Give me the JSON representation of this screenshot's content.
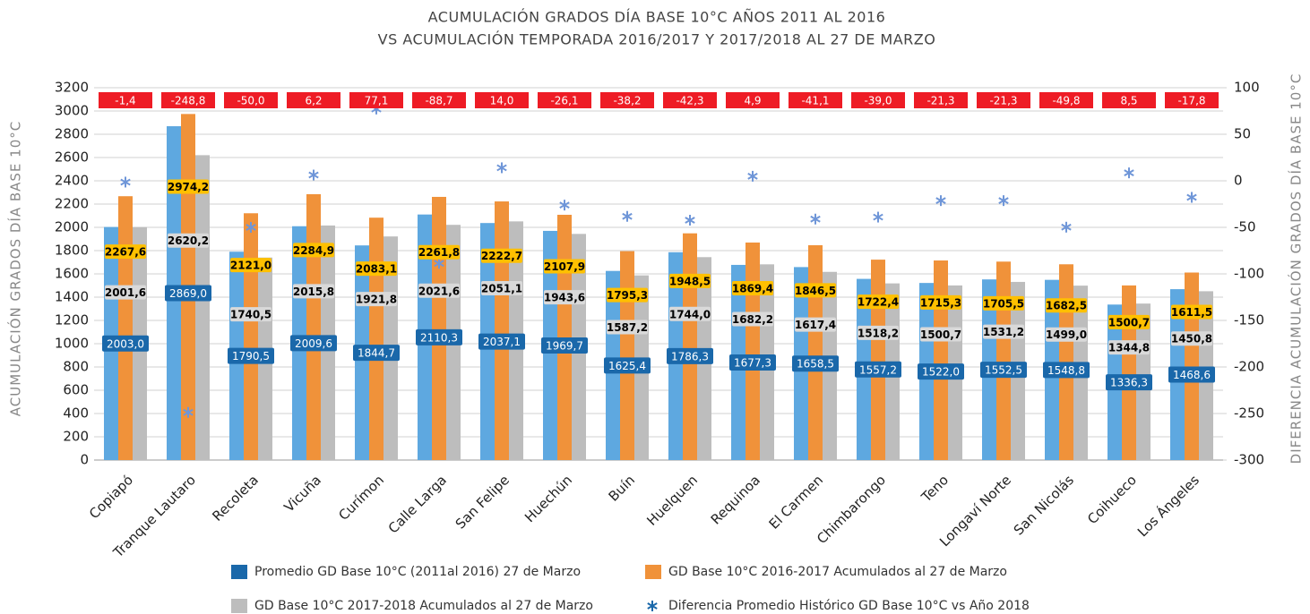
{
  "chart_data": {
    "type": "bar",
    "title": "ACUMULACIÓN GRADOS DÍA BASE 10°C AÑOS 2011 AL 2016",
    "subtitle": "VS ACUMULACIÓN TEMPORADA 2016/2017 Y 2017/2018 AL 27 DE MARZO",
    "ylabel": "ACUMULACIÓN GRADOS DÍA BASE 10°C",
    "y2label": "DIFERENCIA ACUMULACIÓN GRADOS DÍA BASE 10°C",
    "categories": [
      "Copiapó",
      "Tranque Lautaro",
      "Recoleta",
      "Vicuña",
      "Curímon",
      "Calle Larga",
      "San Felipe",
      "Huechún",
      "Buín",
      "Huelquen",
      "Requinoa",
      "El Carmen",
      "Chimbarongo",
      "Teno",
      "Longaví Norte",
      "San Nicolás",
      "Coihueco",
      "Los Ángeles"
    ],
    "series": [
      {
        "name": "Promedio GD Base 10°C (2011al 2016) 27 de Marzo",
        "color": "#5ea8e0",
        "values": [
          2003.0,
          2869.0,
          1790.5,
          2009.6,
          1844.7,
          2110.3,
          2037.1,
          1969.7,
          1625.4,
          1786.3,
          1677.3,
          1658.5,
          1557.2,
          1522.0,
          1552.5,
          1548.8,
          1336.3,
          1468.6
        ],
        "value_labels": [
          "2003,0",
          "2869,0",
          "1790,5",
          "2009,6",
          "1844,7",
          "2110,3",
          "2037,1",
          "1969,7",
          "1625,4",
          "1786,3",
          "1677,3",
          "1658,5",
          "1557,2",
          "1522,0",
          "1552,5",
          "1548,8",
          "1336,3",
          "1468,6"
        ]
      },
      {
        "name": "GD Base 10°C 2016-2017 Acumulados al 27 de Marzo",
        "color": "#f0923a",
        "values": [
          2267.6,
          2974.2,
          2121.0,
          2284.9,
          2083.1,
          2261.8,
          2222.7,
          2107.9,
          1795.3,
          1948.5,
          1869.4,
          1846.5,
          1722.4,
          1715.3,
          1705.5,
          1682.5,
          1500.7,
          1611.5
        ],
        "value_labels": [
          "2267,6",
          "2974,2",
          "2121,0",
          "2284,9",
          "2083,1",
          "2261,8",
          "2222,7",
          "2107,9",
          "1795,3",
          "1948,5",
          "1869,4",
          "1846,5",
          "1722,4",
          "1715,3",
          "1705,5",
          "1682,5",
          "1500,7",
          "1611,5"
        ]
      },
      {
        "name": "GD Base 10°C 2017-2018 Acumulados al 27 de Marzo",
        "color": "#bdbdbd",
        "values": [
          2001.6,
          2620.2,
          1740.5,
          2015.8,
          1921.8,
          2021.6,
          2051.1,
          1943.6,
          1587.2,
          1744.0,
          1682.2,
          1617.4,
          1518.2,
          1500.7,
          1531.2,
          1499.0,
          1344.8,
          1450.8
        ],
        "value_labels": [
          "2001,6",
          "2620,2",
          "1740,5",
          "2015,8",
          "1921,8",
          "2021,6",
          "2051,1",
          "1943,6",
          "1587,2",
          "1744,0",
          "1682,2",
          "1617,4",
          "1518,2",
          "1500,7",
          "1531,2",
          "1499,0",
          "1344,8",
          "1450,8"
        ]
      },
      {
        "name": "Diferencia Promedio Histórico GD Base 10°C vs Año 2018",
        "color": "#6f96d8",
        "axis": "y2",
        "marker": "asterisk",
        "values": [
          -1.4,
          -248.8,
          -50.0,
          6.2,
          77.1,
          -88.7,
          14.0,
          -26.1,
          -38.2,
          -42.3,
          4.9,
          -41.1,
          -39.0,
          -21.3,
          -21.3,
          -49.8,
          8.5,
          -17.8
        ],
        "value_labels": [
          "-1,4",
          "-248,8",
          "-50,0",
          "6,2",
          "77,1",
          "-88,7",
          "14,0",
          "-26,1",
          "-38,2",
          "-42,3",
          "4,9",
          "-41,1",
          "-39,0",
          "-21,3",
          "-21,3",
          "-49,8",
          "8,5",
          "-17,8"
        ]
      }
    ],
    "ylim": [
      0,
      3200
    ],
    "yticks": [
      0,
      200,
      400,
      600,
      800,
      1000,
      1200,
      1400,
      1600,
      1800,
      2000,
      2200,
      2400,
      2600,
      2800,
      3000,
      3200
    ],
    "y2lim": [
      -300,
      100
    ],
    "y2ticks": [
      -300,
      -250,
      -200,
      -150,
      -100,
      -50,
      0,
      50,
      100
    ],
    "grid": true,
    "legend": "bottom"
  }
}
